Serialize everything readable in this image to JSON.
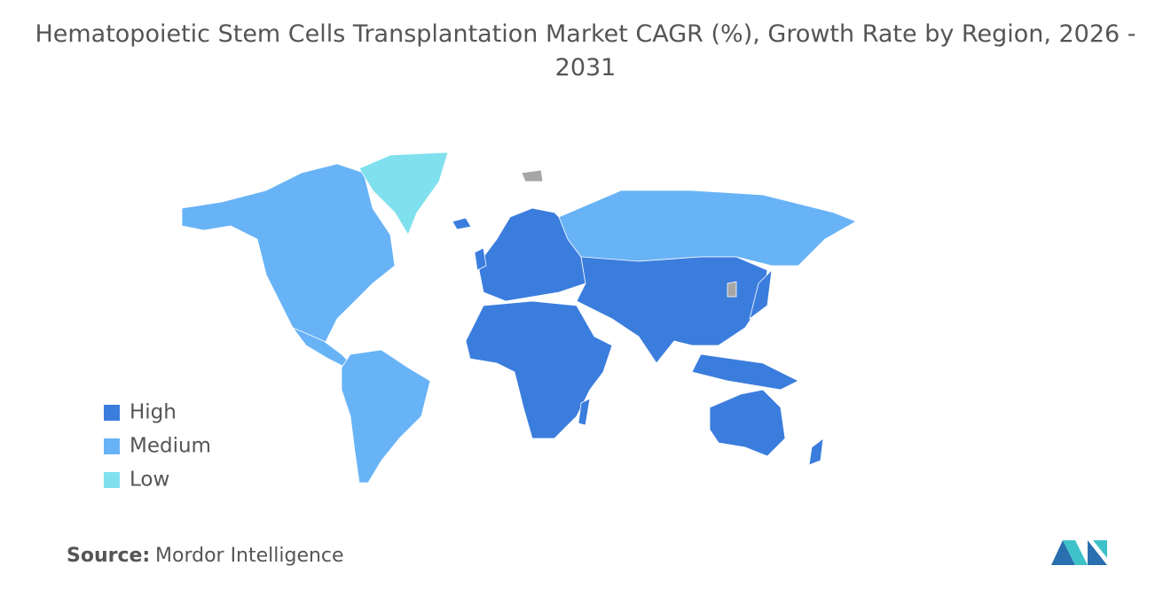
{
  "title": "Hematopoietic Stem Cells Transplantation Market CAGR (%), Growth Rate by Region, 2026 - 2031",
  "legend": [
    {
      "label": "High",
      "color": "#3b7ddd"
    },
    {
      "label": "Medium",
      "color": "#68b3f6"
    },
    {
      "label": "Low",
      "color": "#80e0ee"
    }
  ],
  "source": {
    "label": "Source:",
    "text": "Mordor Intelligence"
  }
}
